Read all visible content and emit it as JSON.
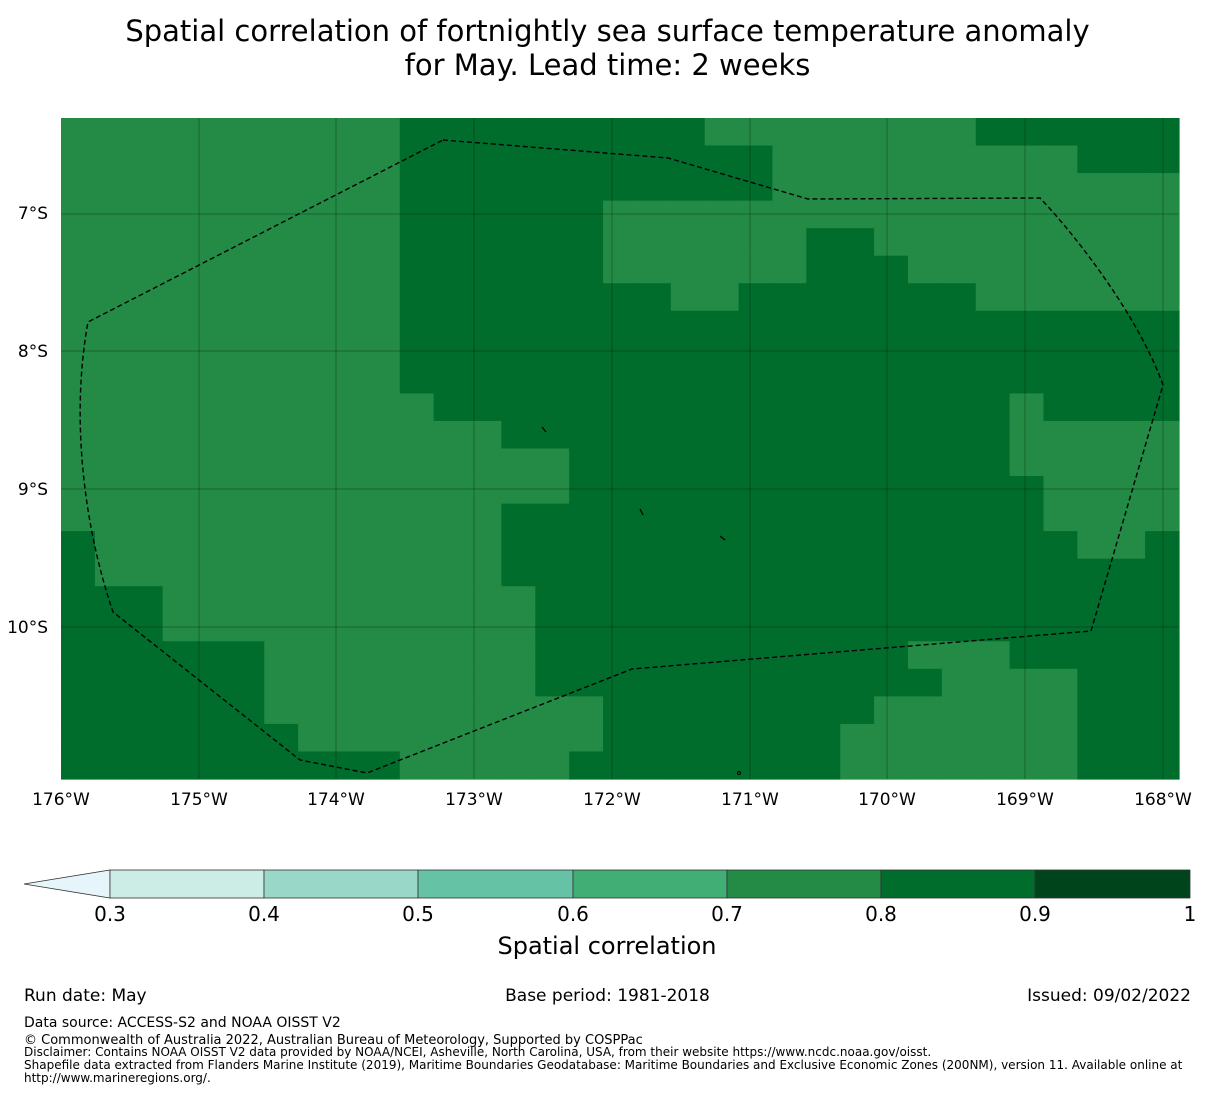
{
  "title": {
    "line1": "Spatial correlation of fortnightly sea surface temperature anomaly",
    "line2": "for May. Lead time: 2 weeks"
  },
  "map": {
    "lat_labels": [
      "7°S",
      "8°S",
      "9°S",
      "10°S"
    ],
    "lon_labels": [
      "176°W",
      "175°W",
      "174°W",
      "173°W",
      "172°W",
      "171°W",
      "170°W",
      "169°W",
      "168°W"
    ],
    "colors": {
      "class_0_7_0_8": "#238b45",
      "class_0_8_0_9": "#006d2c",
      "boundary": "#000000"
    },
    "grid": "on",
    "grid_rows": [
      "3333333333BBBBBBBBB33333333BBBBBB",
      "3333333333BBBBBBBBBBB333333333BBB",
      "3333333333BBBBBBBBBBB333333333333",
      "3333333333BBBBBB333333333333333333",
      "3333333333BBBBBB333333BB3333333333",
      "3333333333BBBBBB333333BBB333333333",
      "3333333333BBBBBBBB33BBBBBBB3333333",
      "3333333333BBBBBBBBBBBBBBBBBBBBBBBB",
      "3333333333BBBBBBBBBBBBBBBBBBBBBBBB",
      "3333333333BBBBBBBBBBBBBBBBBBBBBBBB",
      "33333333333BBBBBBBBBBBBBBBBB3BBBBB",
      "3333333333333BBBBBBBBBBBBBBB333333",
      "333333333333333BBBBBBBBBBBBB33333B",
      "333333333333333BBBBBBBBBBBBBB33333",
      "3333333333333BBBBBBBBBBBBBBBB33333",
      "B333333333333BBBBBBBBBBBBBBBBB33BB",
      "B333333333333BBBBBBBBBBBBBBBBBBBBB",
      "BBB33333333333BBBBBBBBBBBBBBBBBBBB",
      "BBB33333333333BBBBBBBBBBBBBBBBBBBB",
      "BBBBBB33333333BBBBBBBBBBB333BBBBBB",
      "BBBBBB33333333BBBBBBBBBBBB3333BBBB",
      "BBBBBB3333333333BBBBBBBB333333BBBB",
      "BBBBBBB333333333BBBBBBB3333333BBBB",
      "BBBBBBBBBB33333BBBBBBBB3333333BBBB"
    ]
  },
  "colorbar": {
    "title": "Spatial correlation",
    "ticks": [
      "0.3",
      "0.4",
      "0.5",
      "0.6",
      "0.7",
      "0.8",
      "0.9",
      "1"
    ],
    "colors": [
      "#e5f5f9",
      "#ccece6",
      "#99d8c9",
      "#66c2a4",
      "#41ae76",
      "#238b45",
      "#006d2c",
      "#00441b"
    ]
  },
  "footer": {
    "run_date": "Run date: May",
    "base_period": "Base period: 1981-2018",
    "issued": "Issued: 09/02/2022",
    "data_source": "Data source: ACCESS-S2 and NOAA OISST V2",
    "copyright": "© Commonwealth of Australia 2022, Australian Bureau of Meteorology, Supported by COSPPac",
    "disclaimer": "Disclaimer: Contains NOAA OISST V2 data provided by NOAA/NCEI, Asheville, North Carolina, USA, from their website https://www.ncdc.noaa.gov/oisst.",
    "shapefile": "Shapefile data extracted from Flanders Marine Institute (2019), Maritime Boundaries Geodatabase: Maritime Boundaries and Exclusive Economic Zones (200NM), version 11. Available online at http://www.marineregions.org/."
  }
}
